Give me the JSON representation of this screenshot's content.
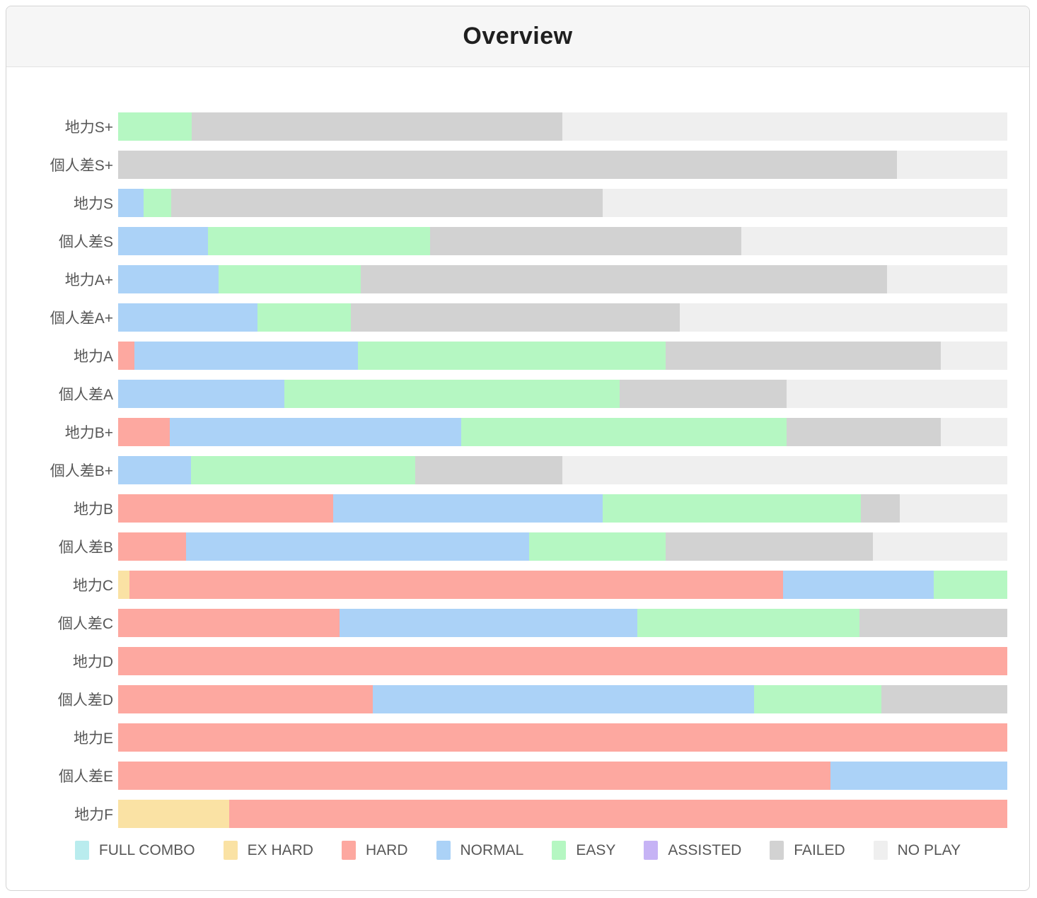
{
  "header": {
    "title": "Overview"
  },
  "legend": [
    {
      "key": "FULL COMBO",
      "label": "FULL COMBO",
      "color": "#b9ecee"
    },
    {
      "key": "EX HARD",
      "label": "EX HARD",
      "color": "#fae2a4"
    },
    {
      "key": "HARD",
      "label": "HARD",
      "color": "#fda8a0"
    },
    {
      "key": "NORMAL",
      "label": "NORMAL",
      "color": "#abd2f7"
    },
    {
      "key": "EASY",
      "label": "EASY",
      "color": "#b5f7c2"
    },
    {
      "key": "ASSISTED",
      "label": "ASSISTED",
      "color": "#c6b3f5"
    },
    {
      "key": "FAILED",
      "label": "FAILED",
      "color": "#d2d2d2"
    },
    {
      "key": "NO PLAY",
      "label": "NO PLAY",
      "color": "#efefef"
    }
  ],
  "chart_data": {
    "type": "bar",
    "orientation": "horizontal",
    "stacked": true,
    "unit": "percent",
    "title": "Overview",
    "legend_position": "bottom",
    "grid": false,
    "xlim": [
      0,
      100
    ],
    "series_keys": [
      "FULL COMBO",
      "EX HARD",
      "HARD",
      "NORMAL",
      "EASY",
      "ASSISTED",
      "FAILED",
      "NO PLAY"
    ],
    "categories": [
      "地力S+",
      "個人差S+",
      "地力S",
      "個人差S",
      "地力A+",
      "個人差A+",
      "地力A",
      "個人差A",
      "地力B+",
      "個人差B+",
      "地力B",
      "個人差B",
      "地力C",
      "個人差C",
      "地力D",
      "個人差D",
      "地力E",
      "個人差E",
      "地力F"
    ],
    "rows": [
      {
        "label": "地力S+",
        "segments": [
          {
            "key": "EASY",
            "pct": 8.3
          },
          {
            "key": "FAILED",
            "pct": 41.7
          },
          {
            "key": "NO PLAY",
            "pct": 50.0
          }
        ]
      },
      {
        "label": "個人差S+",
        "segments": [
          {
            "key": "FAILED",
            "pct": 87.6
          },
          {
            "key": "NO PLAY",
            "pct": 12.4
          }
        ]
      },
      {
        "label": "地力S",
        "segments": [
          {
            "key": "NORMAL",
            "pct": 2.9
          },
          {
            "key": "EASY",
            "pct": 3.1
          },
          {
            "key": "FAILED",
            "pct": 48.5
          },
          {
            "key": "NO PLAY",
            "pct": 45.5
          }
        ]
      },
      {
        "label": "個人差S",
        "segments": [
          {
            "key": "NORMAL",
            "pct": 10.1
          },
          {
            "key": "EASY",
            "pct": 25.0
          },
          {
            "key": "FAILED",
            "pct": 35.0
          },
          {
            "key": "NO PLAY",
            "pct": 29.9
          }
        ]
      },
      {
        "label": "地力A+",
        "segments": [
          {
            "key": "NORMAL",
            "pct": 11.3
          },
          {
            "key": "EASY",
            "pct": 16.0
          },
          {
            "key": "FAILED",
            "pct": 59.2
          },
          {
            "key": "NO PLAY",
            "pct": 13.5
          }
        ]
      },
      {
        "label": "個人差A+",
        "segments": [
          {
            "key": "NORMAL",
            "pct": 15.7
          },
          {
            "key": "EASY",
            "pct": 10.5
          },
          {
            "key": "FAILED",
            "pct": 37.0
          },
          {
            "key": "NO PLAY",
            "pct": 36.8
          }
        ]
      },
      {
        "label": "地力A",
        "segments": [
          {
            "key": "HARD",
            "pct": 1.8
          },
          {
            "key": "NORMAL",
            "pct": 25.2
          },
          {
            "key": "EASY",
            "pct": 34.6
          },
          {
            "key": "FAILED",
            "pct": 30.9
          },
          {
            "key": "NO PLAY",
            "pct": 7.5
          }
        ]
      },
      {
        "label": "個人差A",
        "segments": [
          {
            "key": "NORMAL",
            "pct": 18.7
          },
          {
            "key": "EASY",
            "pct": 37.7
          },
          {
            "key": "FAILED",
            "pct": 18.8
          },
          {
            "key": "NO PLAY",
            "pct": 24.8
          }
        ]
      },
      {
        "label": "地力B+",
        "segments": [
          {
            "key": "HARD",
            "pct": 5.8
          },
          {
            "key": "NORMAL",
            "pct": 32.8
          },
          {
            "key": "EASY",
            "pct": 36.6
          },
          {
            "key": "FAILED",
            "pct": 17.3
          },
          {
            "key": "NO PLAY",
            "pct": 7.5
          }
        ]
      },
      {
        "label": "個人差B+",
        "segments": [
          {
            "key": "NORMAL",
            "pct": 8.2
          },
          {
            "key": "EASY",
            "pct": 25.2
          },
          {
            "key": "FAILED",
            "pct": 16.6
          },
          {
            "key": "NO PLAY",
            "pct": 50.0
          }
        ]
      },
      {
        "label": "地力B",
        "segments": [
          {
            "key": "HARD",
            "pct": 24.2
          },
          {
            "key": "NORMAL",
            "pct": 30.3
          },
          {
            "key": "EASY",
            "pct": 29.0
          },
          {
            "key": "FAILED",
            "pct": 4.4
          },
          {
            "key": "NO PLAY",
            "pct": 12.1
          }
        ]
      },
      {
        "label": "個人差B",
        "segments": [
          {
            "key": "HARD",
            "pct": 7.6
          },
          {
            "key": "NORMAL",
            "pct": 38.6
          },
          {
            "key": "EASY",
            "pct": 15.4
          },
          {
            "key": "FAILED",
            "pct": 23.3
          },
          {
            "key": "NO PLAY",
            "pct": 15.1
          }
        ]
      },
      {
        "label": "地力C",
        "segments": [
          {
            "key": "EX HARD",
            "pct": 1.3
          },
          {
            "key": "HARD",
            "pct": 73.5
          },
          {
            "key": "NORMAL",
            "pct": 16.9
          },
          {
            "key": "EASY",
            "pct": 8.3
          }
        ]
      },
      {
        "label": "個人差C",
        "segments": [
          {
            "key": "HARD",
            "pct": 24.9
          },
          {
            "key": "NORMAL",
            "pct": 33.5
          },
          {
            "key": "EASY",
            "pct": 25.0
          },
          {
            "key": "FAILED",
            "pct": 16.6
          }
        ]
      },
      {
        "label": "地力D",
        "segments": [
          {
            "key": "HARD",
            "pct": 100
          }
        ]
      },
      {
        "label": "個人差D",
        "segments": [
          {
            "key": "HARD",
            "pct": 28.6
          },
          {
            "key": "NORMAL",
            "pct": 42.9
          },
          {
            "key": "EASY",
            "pct": 14.3
          },
          {
            "key": "FAILED",
            "pct": 14.2
          }
        ]
      },
      {
        "label": "地力E",
        "segments": [
          {
            "key": "HARD",
            "pct": 100
          }
        ]
      },
      {
        "label": "個人差E",
        "segments": [
          {
            "key": "HARD",
            "pct": 80.1
          },
          {
            "key": "NORMAL",
            "pct": 19.9
          }
        ]
      },
      {
        "label": "地力F",
        "segments": [
          {
            "key": "EX HARD",
            "pct": 12.5
          },
          {
            "key": "HARD",
            "pct": 87.5
          }
        ]
      }
    ]
  }
}
